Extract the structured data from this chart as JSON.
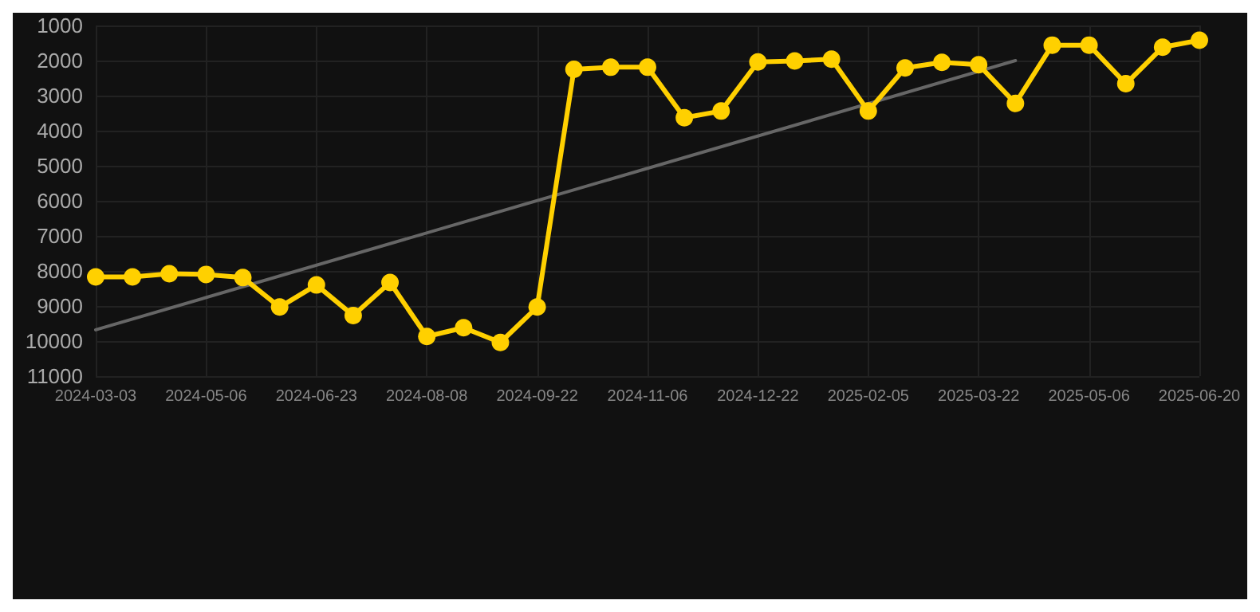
{
  "chart_data": {
    "type": "line",
    "categories": [
      "2024-03-03",
      null,
      null,
      "2024-05-06",
      null,
      null,
      "2024-06-23",
      null,
      null,
      "2024-08-08",
      null,
      null,
      "2024-09-22",
      null,
      null,
      "2024-11-06",
      null,
      null,
      "2024-12-22",
      null,
      null,
      "2025-02-05",
      null,
      null,
      "2025-03-22",
      null,
      null,
      "2025-05-06",
      null,
      null,
      "2025-06-20"
    ],
    "series": [
      {
        "color": "#ffd000",
        "marker": "circle",
        "values": [
          8170,
          8170,
          8080,
          8100,
          8190,
          9030,
          8400,
          9270,
          8330,
          9870,
          9620,
          10040,
          9030,
          2250,
          2190,
          2190,
          3630,
          3440,
          2040,
          2010,
          1960,
          3440,
          2210,
          2050,
          2120,
          3220,
          1560,
          1560,
          2660,
          1620,
          1420
        ]
      },
      {
        "type": "line",
        "color": "#666666",
        "marker": "none",
        "values": [
          9680,
          null,
          null,
          null,
          null,
          null,
          null,
          null,
          null,
          null,
          null,
          null,
          null,
          null,
          null,
          null,
          null,
          null,
          null,
          null,
          null,
          null,
          null,
          null,
          null,
          2000,
          null,
          null,
          null,
          null,
          null
        ]
      }
    ],
    "ylim": [
      11000,
      1000
    ],
    "yticks": [
      1000,
      2000,
      3000,
      4000,
      5000,
      6000,
      7000,
      8000,
      9000,
      10000,
      11000
    ],
    "grid": true
  }
}
